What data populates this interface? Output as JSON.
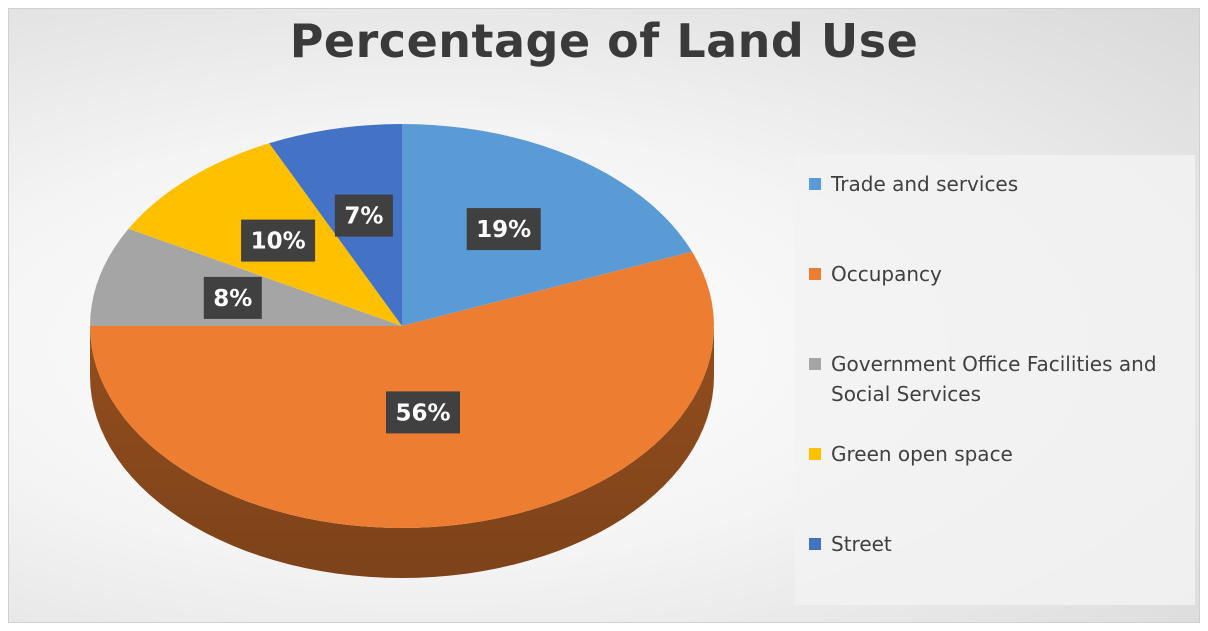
{
  "chart_data": {
    "type": "pie",
    "title": "Percentage of Land Use",
    "slices": [
      {
        "label": "Trade and services",
        "value": 19,
        "display": "19%",
        "color": "#5b9bd5"
      },
      {
        "label": "Occupancy",
        "value": 56,
        "display": "56%",
        "color": "#ed7d31"
      },
      {
        "label": "Government Office Facilities and Social Services",
        "value": 8,
        "display": "8%",
        "color": "#a5a5a5"
      },
      {
        "label": "Green open space",
        "value": 10,
        "display": "10%",
        "color": "#ffc000"
      },
      {
        "label": "Street",
        "value": 7,
        "display": "7%",
        "color": "#4472c4"
      }
    ],
    "legend_position": "right",
    "style": "3d"
  }
}
